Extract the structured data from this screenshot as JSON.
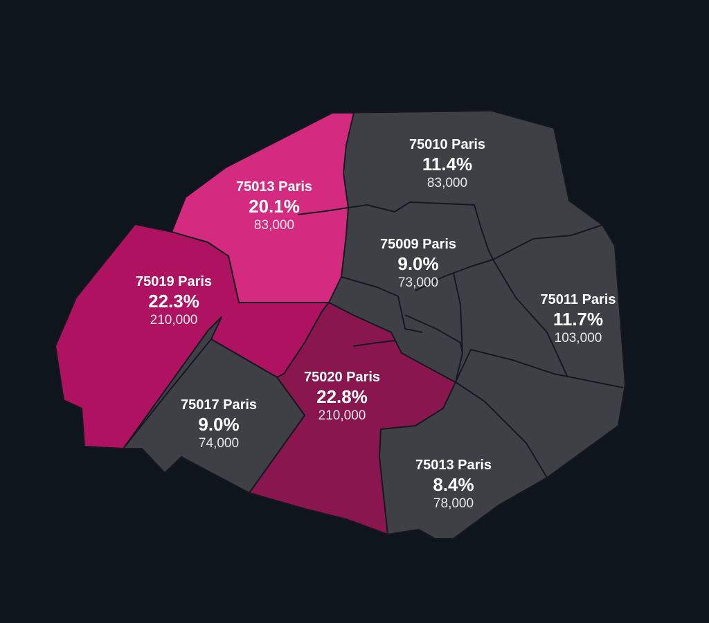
{
  "colors": {
    "background": "#0f151d",
    "neutral_region": "#3e4045",
    "highlight_light": "#d42a80",
    "highlight_mid": "#ae1260",
    "highlight_dark": "#8a1650",
    "border": "#15191f",
    "text": "#ffffff"
  },
  "regions": [
    {
      "name": "75013 Paris",
      "share": "20.1%",
      "population": "83,000",
      "fill": "highlight_light"
    },
    {
      "name": "75010 Paris",
      "share": "11.4%",
      "population": "83,000",
      "fill": "neutral_region"
    },
    {
      "name": "75009 Paris",
      "share": "9.0%",
      "population": "73,000",
      "fill": "neutral_region"
    },
    {
      "name": "75019 Paris",
      "share": "22.3%",
      "population": "210,000",
      "fill": "highlight_mid"
    },
    {
      "name": "75011 Paris",
      "share": "11.7%",
      "population": "103,000",
      "fill": "neutral_region"
    },
    {
      "name": "75020 Paris",
      "share": "22.8%",
      "population": "210,000",
      "fill": "highlight_dark"
    },
    {
      "name": "75017 Paris",
      "share": "9.0%",
      "population": "74,000",
      "fill": "neutral_region"
    },
    {
      "name": "75013 Paris",
      "share": "8.4%",
      "population": "78,000",
      "fill": "neutral_region"
    }
  ]
}
